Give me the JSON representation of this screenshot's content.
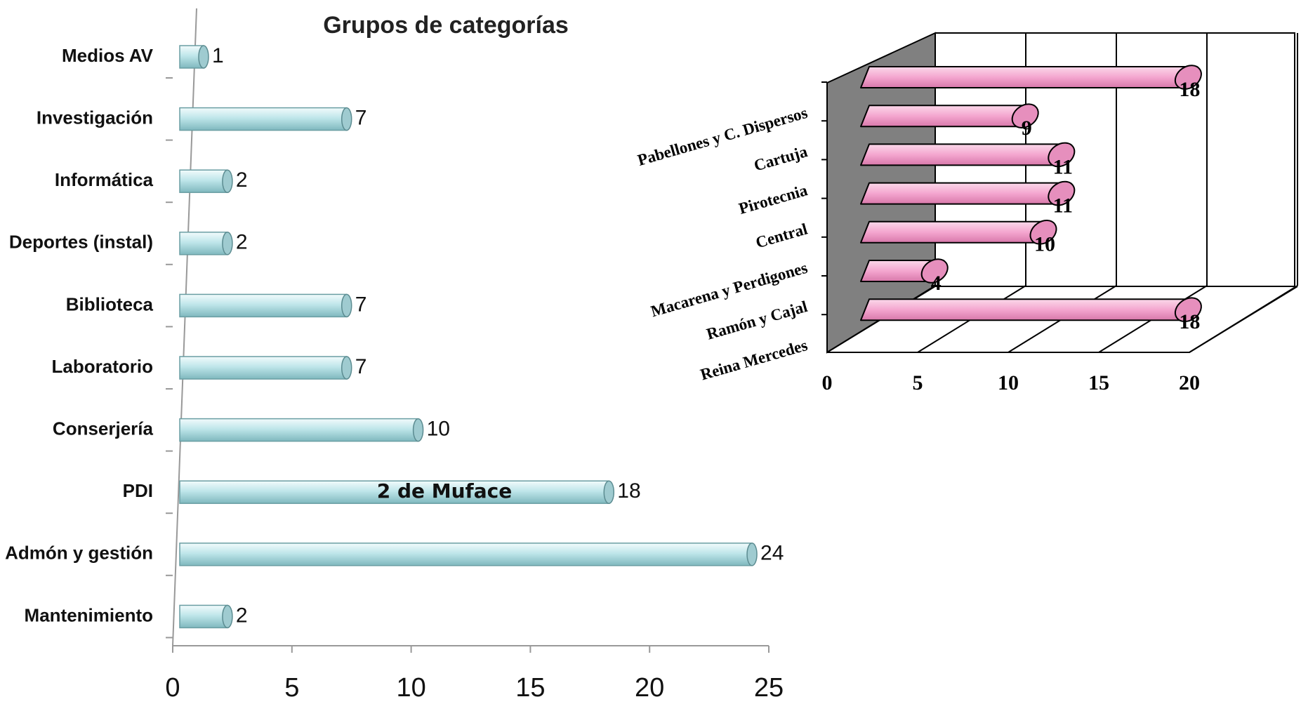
{
  "chart_data": [
    {
      "type": "bar",
      "title": "Grupos de categorías",
      "categories": [
        "Medios AV",
        "Investigación",
        "Informática",
        "Deportes (instal)",
        "Biblioteca",
        "Laboratorio",
        "Conserjería",
        "PDI",
        "Admón y gestión",
        "Mantenimiento"
      ],
      "values": [
        1,
        7,
        2,
        2,
        7,
        7,
        10,
        18,
        24,
        2
      ],
      "color": "#bfe6ea",
      "annotation": "2 de Muface",
      "xlim": [
        0,
        25
      ],
      "xticks": [
        0,
        5,
        10,
        15,
        20,
        25
      ]
    },
    {
      "type": "bar",
      "categories": [
        "Pabellones y C. Dispersos",
        "Cartuja",
        "Pirotecnia",
        "Central",
        "Macarena y Perdigones",
        "Ramón y Cajal",
        "Reina Mercedes"
      ],
      "values": [
        18,
        9,
        11,
        11,
        10,
        4,
        18
      ],
      "color": "#f4a6cf",
      "xlim": [
        0,
        20
      ],
      "xticks": [
        0,
        5,
        10,
        15,
        20
      ],
      "grid": true
    }
  ]
}
